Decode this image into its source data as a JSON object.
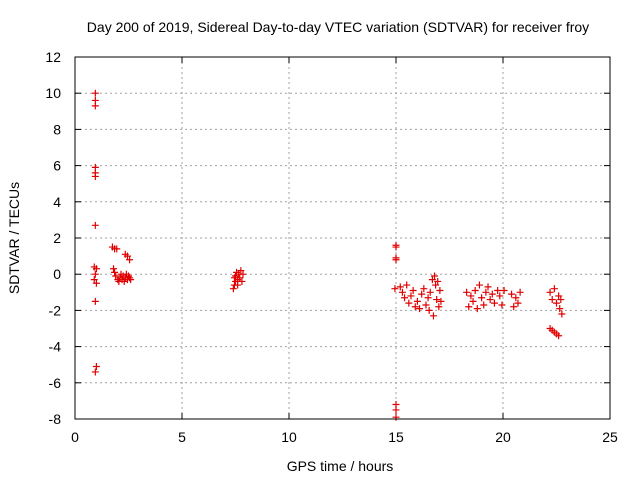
{
  "chart_data": {
    "type": "scatter",
    "title": "Day 200 of 2019, Sidereal Day-to-day VTEC variation (SDTVAR) for receiver froy",
    "xlabel": "GPS time / hours",
    "ylabel": "SDTVAR / TECUs",
    "xlim": [
      0,
      25
    ],
    "ylim": [
      -8,
      12
    ],
    "xticks": [
      0,
      5,
      10,
      15,
      20,
      25
    ],
    "yticks": [
      -8,
      -6,
      -4,
      -2,
      0,
      2,
      4,
      6,
      8,
      10,
      12
    ],
    "grid": true,
    "marker": "+",
    "color": "#e00000",
    "series": [
      {
        "name": "SDTVAR",
        "points": [
          [
            0.95,
            10.0
          ],
          [
            0.95,
            9.6
          ],
          [
            0.95,
            9.3
          ],
          [
            0.95,
            5.9
          ],
          [
            0.95,
            5.6
          ],
          [
            0.95,
            5.4
          ],
          [
            0.95,
            2.7
          ],
          [
            0.9,
            0.4
          ],
          [
            1.0,
            0.3
          ],
          [
            0.95,
            0.0
          ],
          [
            0.9,
            -0.3
          ],
          [
            1.0,
            -0.5
          ],
          [
            0.95,
            -1.5
          ],
          [
            1.0,
            -5.1
          ],
          [
            0.95,
            -5.4
          ],
          [
            1.75,
            1.5
          ],
          [
            1.85,
            1.4
          ],
          [
            1.95,
            1.4
          ],
          [
            1.8,
            0.3
          ],
          [
            1.85,
            0.1
          ],
          [
            1.9,
            -0.1
          ],
          [
            2.0,
            -0.3
          ],
          [
            2.05,
            -0.4
          ],
          [
            2.1,
            -0.2
          ],
          [
            2.15,
            0.0
          ],
          [
            2.2,
            -0.3
          ],
          [
            2.25,
            -0.1
          ],
          [
            2.3,
            -0.4
          ],
          [
            2.35,
            -0.2
          ],
          [
            2.4,
            0.0
          ],
          [
            2.45,
            -0.3
          ],
          [
            2.5,
            -0.1
          ],
          [
            2.55,
            -0.2
          ],
          [
            2.6,
            -0.3
          ],
          [
            2.35,
            1.1
          ],
          [
            2.45,
            1.0
          ],
          [
            2.55,
            0.8
          ],
          [
            7.4,
            -0.8
          ],
          [
            7.45,
            -0.6
          ],
          [
            7.5,
            -0.4
          ],
          [
            7.5,
            -0.1
          ],
          [
            7.55,
            0.1
          ],
          [
            7.6,
            -0.3
          ],
          [
            7.65,
            0.0
          ],
          [
            7.7,
            -0.2
          ],
          [
            7.75,
            0.2
          ],
          [
            7.8,
            -0.4
          ],
          [
            7.85,
            0.0
          ],
          [
            7.45,
            -0.2
          ],
          [
            7.6,
            -0.6
          ],
          [
            15.0,
            1.6
          ],
          [
            15.0,
            1.5
          ],
          [
            15.0,
            0.9
          ],
          [
            15.0,
            0.8
          ],
          [
            15.0,
            -7.2
          ],
          [
            15.0,
            -7.5
          ],
          [
            15.0,
            -7.9
          ],
          [
            14.95,
            -0.8
          ],
          [
            15.2,
            -0.7
          ],
          [
            15.3,
            -1.0
          ],
          [
            15.4,
            -1.3
          ],
          [
            15.5,
            -0.6
          ],
          [
            15.6,
            -1.6
          ],
          [
            15.7,
            -1.2
          ],
          [
            15.8,
            -0.9
          ],
          [
            15.9,
            -1.8
          ],
          [
            16.0,
            -1.5
          ],
          [
            16.1,
            -1.9
          ],
          [
            16.2,
            -1.1
          ],
          [
            16.3,
            -0.8
          ],
          [
            16.4,
            -1.7
          ],
          [
            16.5,
            -1.3
          ],
          [
            16.55,
            -2.0
          ],
          [
            16.6,
            -1.0
          ],
          [
            16.7,
            -0.3
          ],
          [
            16.75,
            -2.3
          ],
          [
            16.8,
            -0.1
          ],
          [
            16.85,
            -0.6
          ],
          [
            16.9,
            -1.4
          ],
          [
            16.95,
            -0.4
          ],
          [
            17.0,
            -1.8
          ],
          [
            17.05,
            -0.9
          ],
          [
            17.1,
            -1.5
          ],
          [
            18.3,
            -1.0
          ],
          [
            18.4,
            -1.8
          ],
          [
            18.5,
            -1.2
          ],
          [
            18.6,
            -1.5
          ],
          [
            18.7,
            -0.9
          ],
          [
            18.8,
            -1.9
          ],
          [
            18.9,
            -0.6
          ],
          [
            19.0,
            -1.3
          ],
          [
            19.1,
            -1.7
          ],
          [
            19.2,
            -1.0
          ],
          [
            19.3,
            -0.7
          ],
          [
            19.4,
            -1.4
          ],
          [
            19.5,
            -1.1
          ],
          [
            19.6,
            -1.6
          ],
          [
            19.75,
            -0.9
          ],
          [
            19.85,
            -1.2
          ],
          [
            19.95,
            -1.7
          ],
          [
            20.05,
            -0.9
          ],
          [
            20.4,
            -1.1
          ],
          [
            20.5,
            -1.8
          ],
          [
            20.6,
            -1.3
          ],
          [
            20.7,
            -1.6
          ],
          [
            20.8,
            -1.0
          ],
          [
            22.2,
            -1.0
          ],
          [
            22.3,
            -1.4
          ],
          [
            22.4,
            -0.8
          ],
          [
            22.5,
            -1.6
          ],
          [
            22.6,
            -1.2
          ],
          [
            22.65,
            -1.9
          ],
          [
            22.7,
            -1.4
          ],
          [
            22.75,
            -2.2
          ],
          [
            22.2,
            -3.0
          ],
          [
            22.3,
            -3.1
          ],
          [
            22.4,
            -3.2
          ],
          [
            22.5,
            -3.3
          ],
          [
            22.6,
            -3.4
          ]
        ]
      }
    ]
  }
}
